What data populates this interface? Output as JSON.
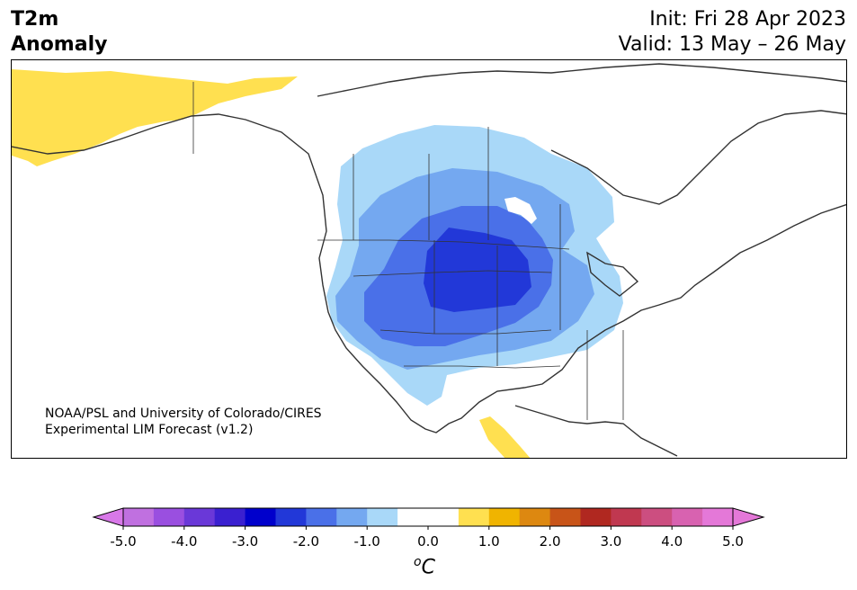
{
  "header": {
    "title_line1": "T2m",
    "title_line2": "Anomaly",
    "init_text": "Init: Fri 28 Apr 2023",
    "valid_text": "Valid: 13 May – 26 May"
  },
  "credit": {
    "line1": "NOAA/PSL and University of Colorado/CIRES",
    "line2": "Experimental LIM Forecast (v1.2)"
  },
  "colorbar": {
    "unit": "C",
    "unit_prefix": "o",
    "tick_labels": [
      "-5.0",
      "-4.0",
      "-3.0",
      "-2.0",
      "-1.0",
      "0.0",
      "1.0",
      "2.0",
      "3.0",
      "4.0",
      "5.0"
    ],
    "colors": [
      "#c070e0",
      "#9a4fe0",
      "#6a38d8",
      "#3a20d0",
      "#0000cc",
      "#2238d8",
      "#4a70e8",
      "#74a8f0",
      "#a9d8f8",
      "#ffffff",
      "#ffffff",
      "#ffe050",
      "#f0b400",
      "#dd8810",
      "#c85418",
      "#b02820",
      "#c03850",
      "#cc4e80",
      "#d862b0",
      "#e478d8"
    ],
    "extend_low_color": "#d878e8",
    "extend_high_color": "#e478d8"
  },
  "map": {
    "region": "North America",
    "anomaly_colors": {
      "warm_1": "#ffe050",
      "cold_1": "#a9d8f8",
      "cold_2": "#74a8f0",
      "cold_3": "#4a70e8",
      "cold_4": "#2238d8"
    }
  }
}
